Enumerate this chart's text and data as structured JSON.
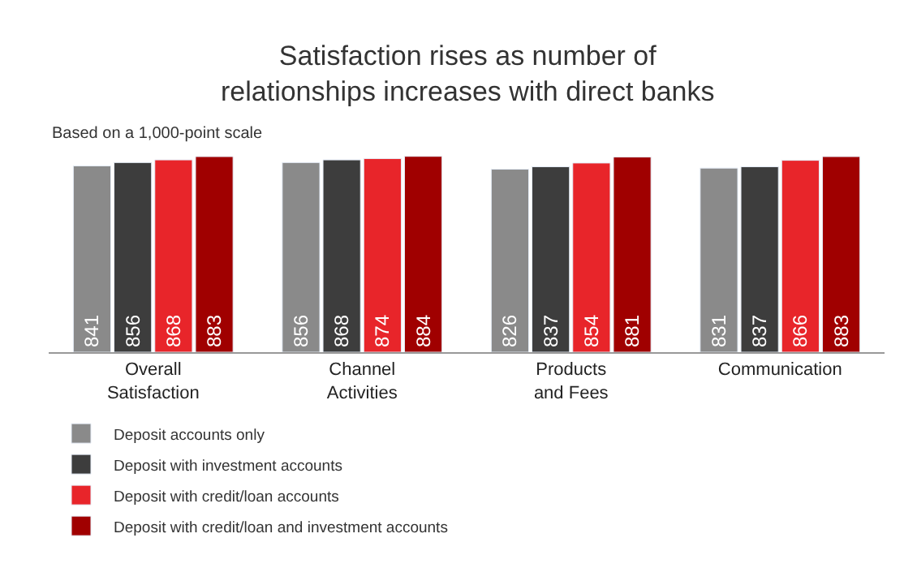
{
  "chart_data": {
    "type": "bar",
    "title": "Satisfaction rises as number of\nrelationships increases with direct banks",
    "subtitle": "Based on a 1,000-point scale",
    "categories": [
      "Overall\nSatisfaction",
      "Channel\nActivities",
      "Products\nand Fees",
      "Communication"
    ],
    "series": [
      {
        "name": "Deposit accounts only",
        "color": "#8a8a8a",
        "values": [
          841,
          856,
          826,
          831
        ]
      },
      {
        "name": "Deposit with investment accounts",
        "color": "#3d3d3d",
        "values": [
          856,
          868,
          837,
          837
        ]
      },
      {
        "name": "Deposit with credit/loan accounts",
        "color": "#e8252a",
        "values": [
          868,
          874,
          854,
          866
        ]
      },
      {
        "name": "Deposit with credit/loan and investment accounts",
        "color": "#a00000",
        "values": [
          883,
          884,
          881,
          883
        ]
      }
    ],
    "data_labels": true,
    "legend": "bottom"
  }
}
